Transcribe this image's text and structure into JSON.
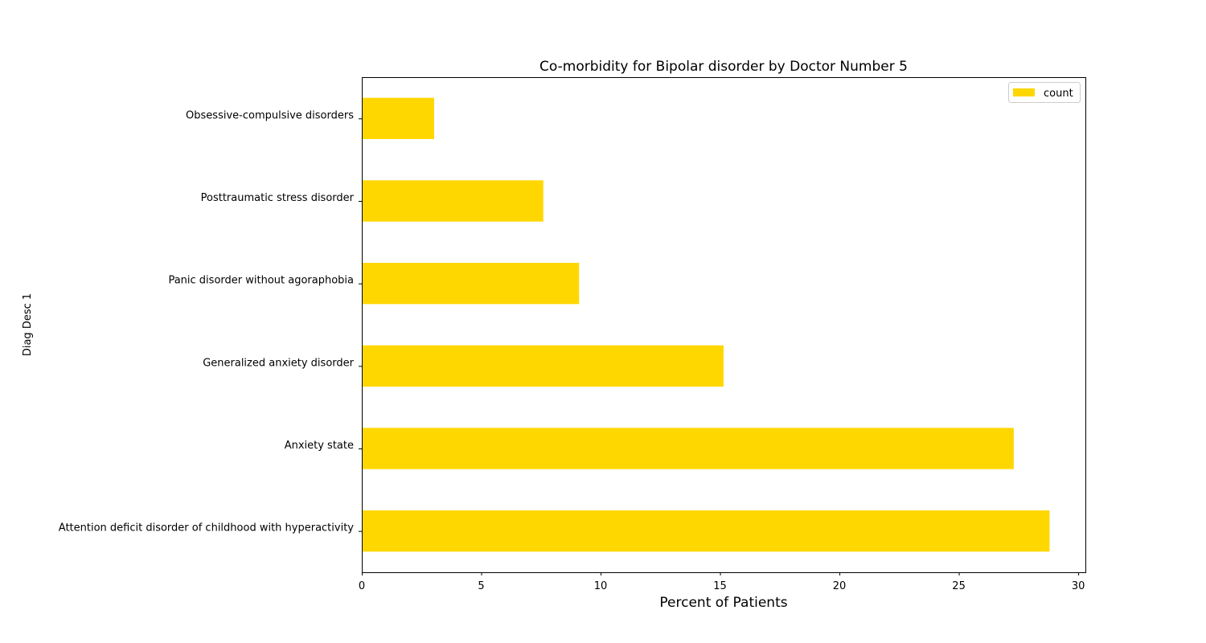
{
  "chart_data": {
    "type": "bar",
    "orientation": "horizontal",
    "title": "Co-morbidity for Bipolar disorder by Doctor Number 5",
    "xlabel": "Percent of Patients",
    "ylabel": "Diag Desc 1",
    "categories": [
      "Attention deficit disorder of childhood with hyperactivity",
      "Anxiety state",
      "Generalized anxiety disorder",
      "Panic disorder without agoraphobia",
      "Posttraumatic stress disorder",
      "Obsessive-compulsive disorders"
    ],
    "series": [
      {
        "name": "count",
        "values": [
          28.8,
          27.3,
          15.15,
          9.1,
          7.6,
          3.03
        ],
        "color": "#FFD700"
      }
    ],
    "xlim": [
      0,
      30.3
    ],
    "xticks": [
      0,
      5,
      10,
      15,
      20,
      25,
      30
    ],
    "grid": false,
    "legend_position": "top-right"
  }
}
